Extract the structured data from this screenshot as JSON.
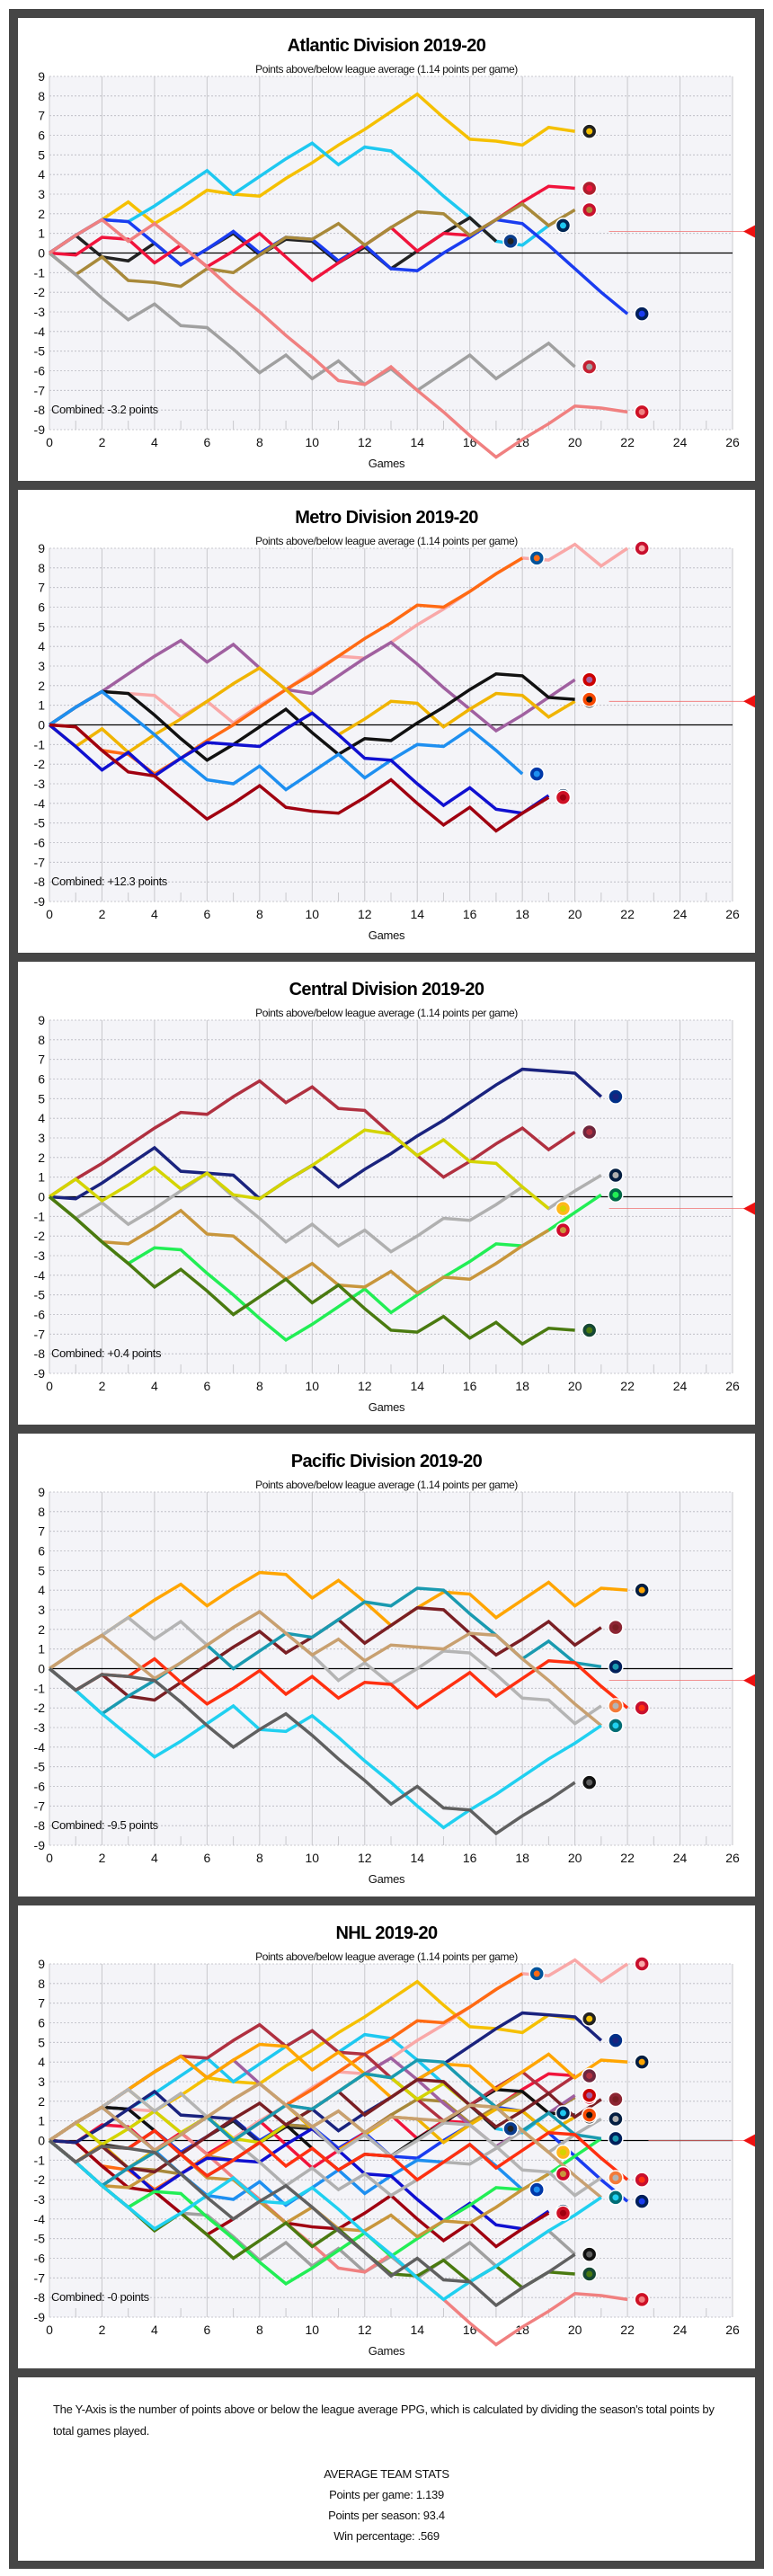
{
  "chart_data": [
    {
      "type": "line",
      "title": "Atlantic Division 2019-20",
      "subtitle": "Points above/below league average (1.14 points per game)",
      "xlabel": "Games",
      "xlim": [
        0,
        26
      ],
      "ylim": [
        -9,
        9
      ],
      "xtick_step": 2,
      "ytick_step": 1,
      "grid": true,
      "combined_label": "Combined: -3.2 points",
      "marker_value": 1.1,
      "series": [
        {
          "logo": "BOS",
          "color": "#f5c000",
          "logo_color": "#222222",
          "values": [
            0,
            0.9,
            1.7,
            2.6,
            1.5,
            2.3,
            3.2,
            3.0,
            2.9,
            3.8,
            4.6,
            5.5,
            6.3,
            7.2,
            8.1,
            6.9,
            5.8,
            5.7,
            5.5,
            6.4,
            6.2
          ]
        },
        {
          "logo": "BUF",
          "color": "#1ec8f0",
          "logo_color": "#002654",
          "values": [
            0,
            0.9,
            1.7,
            1.6,
            2.4,
            3.3,
            4.2,
            3.0,
            3.9,
            4.8,
            5.6,
            4.5,
            5.4,
            5.2,
            4.1,
            2.9,
            1.8,
            0.6,
            0.4,
            1.4
          ]
        },
        {
          "logo": "TBL",
          "color": "#222222",
          "logo_color": "#0b3c8c",
          "values": [
            0,
            0.9,
            -0.2,
            -0.4,
            0.5,
            -0.6,
            0.2,
            1.0,
            -0.1,
            0.7,
            0.6,
            -0.5,
            0.3,
            -0.8,
            0.1,
            1.0,
            1.8,
            0.6
          ]
        },
        {
          "logo": "TOR",
          "color": "#1a3cf0",
          "logo_color": "#00205b",
          "values": [
            0,
            0.9,
            1.7,
            1.6,
            0.5,
            -0.6,
            0.2,
            1.1,
            0.0,
            0.8,
            0.7,
            -0.4,
            0.4,
            -0.8,
            -0.9,
            0.0,
            0.8,
            1.7,
            1.5,
            0.4,
            -0.8,
            -2.0,
            -3.1
          ]
        },
        {
          "logo": "MTL",
          "color": "#f0143c",
          "logo_color": "#af1e2d",
          "values": [
            0,
            -0.1,
            0.8,
            0.7,
            -0.5,
            0.4,
            -0.7,
            0.1,
            1.0,
            -0.2,
            -1.4,
            -0.5,
            0.4,
            1.3,
            0.1,
            1.0,
            0.9,
            1.7,
            2.6,
            3.4,
            3.3
          ]
        },
        {
          "logo": "FLA",
          "color": "#a8893a",
          "logo_color": "#c8102e",
          "values": [
            0,
            -1.1,
            -0.2,
            -1.4,
            -1.5,
            -1.7,
            -0.8,
            -1.0,
            -0.1,
            0.8,
            0.7,
            1.5,
            0.4,
            1.3,
            2.1,
            2.0,
            0.9,
            1.7,
            2.5,
            1.4,
            2.2
          ]
        },
        {
          "logo": "OTT",
          "color": "#a0a0a0",
          "logo_color": "#c52032",
          "values": [
            0,
            -1.1,
            -2.3,
            -3.4,
            -2.6,
            -3.7,
            -3.8,
            -4.9,
            -6.1,
            -5.2,
            -6.4,
            -5.5,
            -6.7,
            -5.9,
            -7.0,
            -6.1,
            -5.2,
            -6.4,
            -5.5,
            -4.6,
            -5.8
          ]
        },
        {
          "logo": "DET",
          "color": "#f08080",
          "logo_color": "#ce1126",
          "values": [
            0,
            0.9,
            1.7,
            0.6,
            1.5,
            0.4,
            -0.7,
            -1.9,
            -3.0,
            -4.2,
            -5.3,
            -6.5,
            -6.7,
            -5.8,
            -7.0,
            -8.1,
            -9.3,
            -10.4,
            -9.5,
            -8.7,
            -7.8,
            -7.9,
            -8.1
          ]
        }
      ]
    },
    {
      "type": "line",
      "title": "Metro Division 2019-20",
      "subtitle": "Points above/below league average (1.14 points per game)",
      "xlabel": "Games",
      "xlim": [
        0,
        26
      ],
      "ylim": [
        -9,
        9
      ],
      "xtick_step": 2,
      "ytick_step": 1,
      "grid": true,
      "combined_label": "Combined: +12.3 points",
      "marker_value": 1.2,
      "series": [
        {
          "logo": "WSH",
          "color": "#f9a8a8",
          "logo_color": "#c8102e",
          "values": [
            0,
            0.9,
            1.7,
            1.6,
            1.5,
            0.4,
            1.2,
            0.1,
            1.0,
            1.8,
            2.7,
            3.5,
            3.4,
            4.2,
            5.1,
            5.9,
            6.8,
            7.7,
            8.5,
            8.4,
            9.2,
            8.1,
            9.0
          ]
        },
        {
          "logo": "NYI",
          "color": "#ff6a13",
          "logo_color": "#00539b",
          "values": [
            0,
            -0.1,
            -1.3,
            -1.5,
            -2.5,
            -1.7,
            -0.8,
            0.0,
            0.9,
            1.8,
            2.6,
            3.5,
            4.4,
            5.2,
            6.1,
            6.0,
            6.8,
            7.7,
            8.5
          ]
        },
        {
          "logo": "CAR",
          "color": "#a060a0",
          "logo_color": "#cc0000",
          "values": [
            0,
            0.9,
            1.7,
            2.6,
            3.5,
            4.3,
            3.2,
            4.1,
            2.9,
            1.8,
            1.6,
            2.5,
            3.4,
            4.2,
            3.1,
            1.9,
            0.8,
            -0.3,
            0.5,
            1.4,
            2.3
          ]
        },
        {
          "logo": "PIT",
          "color": "#f0b400",
          "logo_color": "#111111",
          "values": [
            0,
            -1.1,
            -0.2,
            -1.4,
            -0.5,
            0.3,
            1.2,
            2.1,
            2.9,
            1.8,
            0.6,
            -0.5,
            0.3,
            1.2,
            1.1,
            -0.1,
            0.8,
            1.6,
            1.5,
            0.4,
            1.2
          ]
        },
        {
          "logo": "PHI",
          "color": "#111111",
          "logo_color": "#f74902",
          "values": [
            0,
            0.9,
            1.7,
            1.6,
            0.5,
            -0.7,
            -1.8,
            -1.0,
            -0.1,
            0.8,
            -0.4,
            -1.5,
            -0.7,
            -0.8,
            0.1,
            0.9,
            1.8,
            2.6,
            2.5,
            1.4,
            1.3
          ]
        },
        {
          "logo": "NYR",
          "color": "#1e8ff0",
          "logo_color": "#0038a8",
          "values": [
            0,
            0.9,
            1.7,
            0.6,
            -0.5,
            -1.7,
            -2.8,
            -3.0,
            -2.1,
            -3.3,
            -2.4,
            -1.5,
            -2.7,
            -1.8,
            -1.0,
            -1.1,
            -0.2,
            -1.3,
            -2.5
          ]
        },
        {
          "logo": "CBJ",
          "color": "#1010d0",
          "logo_color": "#002654",
          "values": [
            0,
            -1.1,
            -2.3,
            -1.4,
            -2.6,
            -1.7,
            -0.9,
            -1.0,
            -1.1,
            -0.2,
            0.6,
            -0.5,
            -1.7,
            -1.8,
            -3.0,
            -4.1,
            -3.2,
            -4.3,
            -4.5,
            -3.6
          ]
        },
        {
          "logo": "NJD",
          "color": "#a00010",
          "logo_color": "#ce1126",
          "values": [
            0,
            -0.1,
            -1.3,
            -2.4,
            -2.6,
            -3.7,
            -4.8,
            -4.0,
            -3.1,
            -4.2,
            -4.4,
            -4.5,
            -3.7,
            -2.8,
            -4.0,
            -5.1,
            -4.2,
            -5.4,
            -4.5,
            -3.7
          ]
        }
      ]
    },
    {
      "type": "line",
      "title": "Central Division 2019-20",
      "subtitle": "Points above/below league average (1.14 points per game)",
      "xlabel": "Games",
      "xlim": [
        0,
        26
      ],
      "ylim": [
        -9,
        9
      ],
      "xtick_step": 2,
      "ytick_step": 1,
      "grid": true,
      "combined_label": "Combined: +0.4 points",
      "marker_value": -0.6,
      "series": [
        {
          "logo": "STL",
          "color": "#1a237e",
          "logo_color": "#002f87",
          "values": [
            0,
            -0.1,
            0.7,
            1.6,
            2.5,
            1.3,
            1.2,
            1.1,
            -0.1,
            0.8,
            1.6,
            0.5,
            1.4,
            2.2,
            3.1,
            3.9,
            4.8,
            5.7,
            6.5,
            6.4,
            6.3,
            5.1
          ]
        },
        {
          "logo": "COL",
          "color": "#b03040",
          "logo_color": "#6f263d",
          "values": [
            0,
            0.9,
            1.7,
            2.6,
            3.5,
            4.3,
            4.2,
            5.1,
            5.9,
            4.8,
            5.6,
            4.5,
            4.4,
            3.2,
            2.1,
            1.0,
            1.8,
            2.7,
            3.5,
            2.4,
            3.3
          ]
        },
        {
          "logo": "WPG",
          "color": "#b0b0b0",
          "logo_color": "#041e42",
          "values": [
            0,
            -1.1,
            -0.3,
            -1.4,
            -0.6,
            0.3,
            1.2,
            0.0,
            -1.1,
            -2.3,
            -1.4,
            -2.5,
            -1.7,
            -2.8,
            -2.0,
            -1.1,
            -1.2,
            -0.4,
            0.5,
            -0.6,
            0.3,
            1.1
          ]
        },
        {
          "logo": "DAL",
          "color": "#22ee55",
          "logo_color": "#006847",
          "values": [
            0,
            -1.1,
            -2.3,
            -3.4,
            -2.6,
            -2.7,
            -3.9,
            -5.0,
            -6.2,
            -7.3,
            -6.5,
            -5.6,
            -4.7,
            -5.9,
            -5.0,
            -4.1,
            -3.3,
            -2.4,
            -2.5,
            -1.7,
            -0.8,
            0.1
          ]
        },
        {
          "logo": "NSH",
          "color": "#d4d400",
          "logo_color": "#ffb81c",
          "values": [
            0,
            0.9,
            -0.2,
            0.6,
            1.5,
            0.4,
            1.2,
            0.1,
            -0.1,
            0.8,
            1.6,
            2.5,
            3.4,
            3.2,
            2.1,
            2.9,
            1.8,
            1.7,
            0.5,
            -0.6
          ]
        },
        {
          "logo": "CHI",
          "color": "#c8963c",
          "logo_color": "#cf0a2c",
          "values": [
            0,
            -1.1,
            -2.3,
            -2.4,
            -1.6,
            -0.7,
            -1.9,
            -2.0,
            -3.1,
            -4.2,
            -3.4,
            -4.5,
            -4.6,
            -3.8,
            -4.9,
            -4.1,
            -4.2,
            -3.4,
            -2.5,
            -1.7
          ]
        },
        {
          "logo": "MIN",
          "color": "#4a7a10",
          "logo_color": "#154734",
          "values": [
            0,
            -1.1,
            -2.3,
            -3.4,
            -4.6,
            -3.7,
            -4.8,
            -6.0,
            -5.1,
            -4.2,
            -5.4,
            -4.5,
            -5.7,
            -6.8,
            -6.9,
            -6.1,
            -7.2,
            -6.4,
            -7.5,
            -6.7,
            -6.8
          ]
        }
      ]
    },
    {
      "type": "line",
      "title": "Pacific Division 2019-20",
      "subtitle": "Points above/below league average (1.14 points per game)",
      "xlabel": "Games",
      "xlim": [
        0,
        26
      ],
      "ylim": [
        -9,
        9
      ],
      "xtick_step": 2,
      "ytick_step": 1,
      "grid": true,
      "combined_label": "Combined: -9.5 points",
      "marker_value": -0.6,
      "series": [
        {
          "logo": "EDM",
          "color": "#ffa500",
          "logo_color": "#041e42",
          "values": [
            0,
            0.9,
            1.7,
            2.6,
            3.5,
            4.3,
            3.2,
            4.1,
            4.9,
            4.8,
            3.6,
            4.5,
            3.4,
            2.2,
            3.1,
            3.9,
            3.8,
            2.6,
            3.5,
            4.4,
            3.2,
            4.1,
            4.0
          ]
        },
        {
          "logo": "ARI",
          "color": "#7a1f24",
          "logo_color": "#8c2633",
          "values": [
            0,
            -1.1,
            -0.3,
            -1.4,
            -1.6,
            -0.7,
            0.2,
            1.1,
            1.9,
            0.8,
            1.6,
            2.5,
            1.3,
            2.2,
            3.1,
            3.0,
            1.8,
            0.7,
            1.5,
            2.4,
            1.2,
            2.1
          ]
        },
        {
          "logo": "VAN",
          "color": "#1a9ab0",
          "logo_color": "#00205b",
          "values": [
            0,
            -1.1,
            -2.3,
            -1.4,
            -0.6,
            0.3,
            1.2,
            0.0,
            0.9,
            1.8,
            1.6,
            2.5,
            3.4,
            3.2,
            4.1,
            4.0,
            2.8,
            1.7,
            0.5,
            1.4,
            0.3,
            0.1
          ]
        },
        {
          "logo": "ANA",
          "color": "#b4b4b4",
          "logo_color": "#f47a38",
          "values": [
            0,
            0.9,
            1.7,
            2.6,
            1.5,
            2.4,
            1.2,
            2.1,
            2.9,
            1.8,
            0.7,
            -0.6,
            0.3,
            -0.8,
            0.0,
            0.9,
            0.8,
            -0.3,
            -1.5,
            -1.6,
            -2.8,
            -1.9
          ]
        },
        {
          "logo": "CGY",
          "color": "#ff3010",
          "logo_color": "#c8102e",
          "values": [
            0,
            -1.1,
            -0.3,
            -0.4,
            0.5,
            -0.7,
            -1.8,
            -1.0,
            -0.1,
            -1.3,
            -0.4,
            -1.5,
            -0.7,
            -0.8,
            -2.0,
            -1.1,
            -0.2,
            -1.4,
            -0.5,
            0.4,
            0.3,
            -0.9,
            -2.0
          ]
        },
        {
          "logo": "VGK",
          "color": "#c8a070",
          "logo_color": "#333f48",
          "values": [
            0,
            0.9,
            1.7,
            0.6,
            -0.5,
            0.3,
            1.2,
            2.1,
            2.9,
            1.8,
            0.7,
            1.5,
            0.4,
            1.2,
            1.1,
            1.0,
            1.8,
            1.7,
            0.5,
            -0.6,
            -1.8,
            -2.9
          ]
        },
        {
          "logo": "SJS",
          "color": "#20d0f0",
          "logo_color": "#006d75",
          "values": [
            0,
            -1.1,
            -2.3,
            -3.4,
            -4.5,
            -3.7,
            -2.8,
            -1.9,
            -3.1,
            -3.2,
            -2.4,
            -3.5,
            -4.7,
            -5.8,
            -7.0,
            -8.1,
            -7.2,
            -6.4,
            -5.5,
            -4.6,
            -3.8,
            -2.9
          ]
        },
        {
          "logo": "LAK",
          "color": "#606060",
          "logo_color": "#111111",
          "values": [
            0,
            -1.1,
            -0.3,
            -0.4,
            -0.6,
            -1.7,
            -2.9,
            -4.0,
            -3.1,
            -2.3,
            -3.4,
            -4.6,
            -5.7,
            -6.9,
            -6.0,
            -7.1,
            -7.2,
            -8.4,
            -7.5,
            -6.7,
            -5.8
          ]
        }
      ]
    },
    {
      "type": "line",
      "title": "NHL 2019-20",
      "subtitle": "Points above/below league average (1.14 points per game)",
      "xlabel": "Games",
      "xlim": [
        0,
        26
      ],
      "ylim": [
        -9,
        9
      ],
      "xtick_step": 2,
      "ytick_step": 1,
      "grid": true,
      "combined_label": "Combined: -0 points",
      "marker_value": 0,
      "series_source": "all division charts combined"
    }
  ],
  "notes": {
    "description": "The Y-Axis is the number of points above or below the league average PPG, which is calculated by dividing the season's total points by total games played.",
    "stats_heading": "AVERAGE TEAM STATS",
    "points_per_game": "Points per game: 1.139",
    "points_per_season": "Points per season: 93.4",
    "win_percentage": "Win percentage: .569"
  }
}
